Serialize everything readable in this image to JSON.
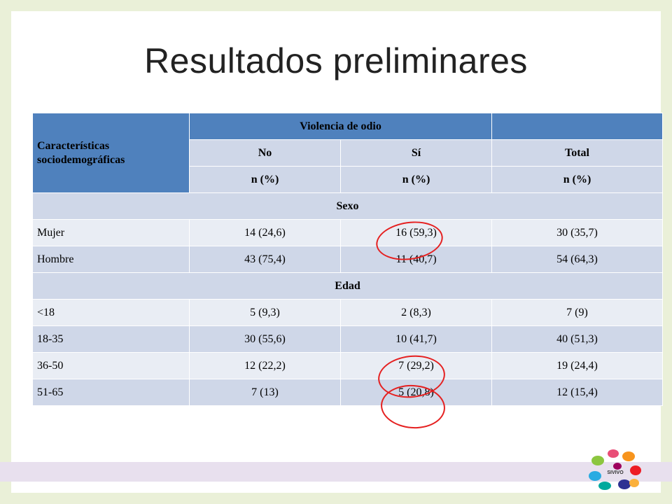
{
  "title": "Resultados preliminares",
  "table": {
    "header_char": "Características sociodemográficas",
    "header_group": "Violencia de odio",
    "subheaders": [
      "No",
      "Sí",
      "Total"
    ],
    "units": [
      "n (%)",
      "n (%)",
      "n (%)"
    ],
    "groups": [
      {
        "label": "Sexo",
        "rows": [
          {
            "label": "Mujer",
            "no": "14 (24,6)",
            "si": "16 (59,3)",
            "total": "30 (35,7)"
          },
          {
            "label": "Hombre",
            "no": "43 (75,4)",
            "si": "11 (40,7)",
            "total": "54 (64,3)"
          }
        ]
      },
      {
        "label": "Edad",
        "rows": [
          {
            "label": "<18",
            "no": "5 (9,3)",
            "si": "2 (8,3)",
            "total": "7 (9)"
          },
          {
            "label": "18-35",
            "no": "30 (55,6)",
            "si": "10 (41,7)",
            "total": "40 (51,3)"
          },
          {
            "label": "36-50",
            "no": "12 (22,2)",
            "si": "7 (29,2)",
            "total": "19 (24,4)"
          },
          {
            "label": "51-65",
            "no": "7 (13)",
            "si": "5 (20,8)",
            "total": "12 (15,4)"
          }
        ]
      }
    ]
  },
  "logo": {
    "text": "SIVIVO",
    "icon": "colorful-hands-logo"
  },
  "colors": {
    "header": "#4f81bd",
    "row_light": "#e9edf4",
    "row_dark": "#cfd7e8",
    "annotation": "#e52020"
  }
}
